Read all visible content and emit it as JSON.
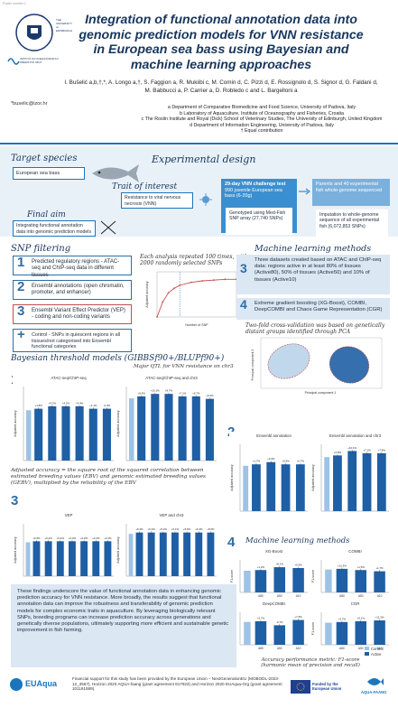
{
  "corner_text": "Poster number 1",
  "title": "Integration of functional annotation data into genomic prediction models for VNN resistance in European sea bass using Bayesian and machine learning approaches",
  "authors": "I. Bušelić a,b,†,*, A. Longo a,†, S. Faggion a, R. Mukiibi c, M. Comin d, C. Pizzi d, E. Rossignolo d, S. Signor d, G. Faldani d, M. Babbucci a, P. Carrier a, D. Robledo c and L. Bargelloni a",
  "email": "*buselic@izor.hr",
  "affiliations": [
    "a Department of Comparative Biomedicine and Food Science, University of Padova, Italy",
    "b Laboratory of Aquaculture, Institute of Oceanography and Fisheries, Croatia",
    "c The Roslin Institute and Royal (Dick) School of Veterinary Studies, The University of Edinburgh, United Kingdom",
    "d Department of Information Engineering, University of Padova, Italy",
    "† Equal contribution"
  ],
  "logos": {
    "university": "THE UNIVERSITY of EDINBURGH",
    "institute": "INSTITUT ZA OCEANOGRAFIJU I RIBARSTVO SPLIT",
    "euaqua": "EUAqua",
    "eu": "Funded by the European Union",
    "aquafaang": "AQUA-FAANG"
  },
  "target_species": {
    "title": "Target species",
    "label": "European sea bass"
  },
  "trait": {
    "title": "Trait of interest",
    "label": "Resistance to viral nervous necrosis (VNN)"
  },
  "final_aim": {
    "title": "Final aim",
    "label": "Integrating functional annotation data into genomic prediction models"
  },
  "experimental_design": {
    "title": "Experimental design",
    "challenge": "29-day VNN challenge test",
    "challenge_detail": "990 juvenile European sea bass (6-20g)",
    "genotyped": "Genotyped using Med-Fish SNP array (27,740 SNPs)",
    "parents": "Parents and 40 experimental fish whole-genome sequenced",
    "imputation": "Imputation to whole-genome sequence of all experimental fish (6,072,853 SNPs)"
  },
  "snp_filtering": {
    "title": "SNP filtering",
    "items": [
      {
        "num": "1",
        "text": "Predicted regulatory regions - ATAC-seq and ChIP-seq data in different tissues"
      },
      {
        "num": "2",
        "text": "Ensembl annotations (open chromatin, promoter, and enhancer)"
      },
      {
        "num": "3",
        "text": "Ensembl Variant Effect Predictor (VEP) - coding and non-coding variants"
      },
      {
        "num": "+",
        "text": "Control - SNPs in quiescent regions in all tissues/not categorised into Ensembl functional categories"
      }
    ],
    "repeat_note": "Each analysis repeated 100 times, with 2000 randomly selected SNPs"
  },
  "ml_methods": {
    "title": "Machine learning methods",
    "item3": "Three datasets created based on ATAC and ChIP-seq data: regions active in at least 80% of tissues (Active80), 50% of tissues (Active50) and 10% of tissues (Active10)",
    "item4": "Extreme gradient boosting (XG-Boost), COMBI, DeepCOMBI and Chaos Game Representation (CGR)",
    "cv_note": "Two-fold cross-validation was based on genetically distant groups identified through PCA",
    "pca_xlabel": "Principal component 1",
    "pca_ylabel": "Principal component 2"
  },
  "bayesian": {
    "title": "Bayesian threshold models (GIBBSf90+/BLUPf90+)",
    "qtl_note": "Major QTL for VNN resistance on chr3",
    "adjusted_note": "Adjusted accuracy = the square root of the squared correlation between estimated breeding values (EBV) and genomic estimated breeding values (GEBV), multiplied by the reliability of the EBV"
  },
  "ml_results_title": "Machine learning methods",
  "accuracy_note": "Accuracy performance metric: F1-score (harmonic mean of precision and recall)",
  "legend": {
    "control": "Control",
    "active": "Active"
  },
  "conclusion": "These findings underscore the value of functional annotation data in enhancing genomic prediction accuracy for VNN resistance. More broadly, the results suggest that functional annotation data can improve the robustness and transferability of genomic prediction models for complex economic traits in aquaculture. By leveraging biologically relevant SNPs, breeding programs can increase prediction accuracy across generations and genetically diverse populations, ultimately supporting more efficient and sustainable genetic improvement in fish farming.",
  "footer": "Financial support for this study has been provided by the European Union – NextGenerationEU (MOBODL-2023-12_3567), Horizon 2020 AQUA-faang (grant agreement 817923) and Horizon 2020 EUAqua-Org (grant agreement 101161589).",
  "chart_data": [
    {
      "type": "line",
      "title": "",
      "xlabel": "Number of SNP",
      "ylabel": "Adjusted accuracy",
      "x": [
        0,
        500,
        1000,
        1500,
        2000,
        3000,
        4000,
        5000,
        6000,
        7000
      ],
      "values": [
        0.0,
        0.1,
        0.16,
        0.19,
        0.21,
        0.23,
        0.24,
        0.245,
        0.25,
        0.25
      ],
      "ylim": [
        0,
        0.3
      ]
    },
    {
      "type": "bar",
      "title": "ATAC-seq/ChIP-seq",
      "ylabel": "Adjusted accuracy",
      "values": [
        0.21,
        0.22,
        0.22,
        0.22,
        0.21,
        0.21
      ],
      "labels": [
        "+1.8%",
        "+4.2%",
        "+4.2%",
        "+3.4%",
        "+1.1%",
        "-0.4%"
      ],
      "ylim": [
        0,
        0.3
      ]
    },
    {
      "type": "bar",
      "title": "ATAC-seq/ChIP-seq and chr3",
      "ylabel": "Adjusted accuracy",
      "values": [
        0.26,
        0.27,
        0.27,
        0.26,
        0.26,
        0.25
      ],
      "labels": [
        "+9.3%",
        "+10.1%",
        "+9.7%",
        "+7.1%",
        "+6.7%",
        "+5.2%"
      ],
      "ylim": [
        0,
        0.3
      ]
    },
    {
      "type": "bar",
      "title": "Ensembl annotation",
      "ylabel": "Adjusted accuracy",
      "values": [
        0.21,
        0.22,
        0.21,
        0.21
      ],
      "labels": [
        "+1.7%",
        "+3.0%",
        "+0.5%",
        "+0.7%"
      ],
      "ylim": [
        0,
        0.3
      ]
    },
    {
      "type": "bar",
      "title": "Ensembl annotation and chr3",
      "ylabel": "Adjusted accuracy",
      "values": [
        0.25,
        0.27,
        0.26,
        0.26
      ],
      "labels": [
        "+5.8%",
        "+10.1%",
        "+7.1%",
        "+7.8%"
      ],
      "ylim": [
        0,
        0.3
      ]
    },
    {
      "type": "bar",
      "title": "VEP",
      "ylabel": "Adjusted accuracy",
      "values": [
        0.2,
        0.2,
        0.2,
        0.2,
        0.2,
        0.2,
        0.2
      ],
      "labels": [
        "+0.3%",
        "+0.4%",
        "+0.4%",
        "+0.3%",
        "+0.2%",
        "+0.2%",
        "+0.1%"
      ],
      "ylim": [
        0,
        0.3
      ]
    },
    {
      "type": "bar",
      "title": "VEP and chr3",
      "ylabel": "Adjusted accuracy",
      "values": [
        0.25,
        0.25,
        0.25,
        0.25,
        0.25,
        0.25,
        0.25
      ],
      "labels": [
        "+5.4%",
        "+5.2%",
        "+5.2%",
        "+5.1%",
        "+5.6%",
        "+5.3%",
        "+5.0%"
      ],
      "ylim": [
        0,
        0.3
      ]
    },
    {
      "type": "bar",
      "title": "XG-Boost",
      "ylabel": "F1-score",
      "categories": [
        "A80",
        "A50",
        "A10"
      ],
      "values": [
        0.55,
        0.62,
        0.6
      ],
      "labels": [
        "+1.2%",
        "+8.1%",
        "+5.3%"
      ],
      "ylim": [
        0,
        0.8
      ]
    },
    {
      "type": "bar",
      "title": "COMBI",
      "ylabel": "F1-score",
      "categories": [
        "A80",
        "A50",
        "A10"
      ],
      "values": [
        0.58,
        0.55,
        0.52
      ],
      "labels": [
        "+12.3%",
        "+1.5%",
        "+1.7%"
      ],
      "ylim": [
        0,
        0.8
      ]
    },
    {
      "type": "bar",
      "title": "DeepCOMBI",
      "ylabel": "F1-score",
      "categories": [
        "A80",
        "A50",
        "A10"
      ],
      "values": [
        0.58,
        0.48,
        0.61
      ],
      "labels": [
        "+5.7%",
        "-0.7%",
        "+7.3%"
      ],
      "ylim": [
        0,
        0.8
      ]
    },
    {
      "type": "bar",
      "title": "CGR",
      "ylabel": "F1-score",
      "categories": [
        "A80",
        "A50",
        "A10"
      ],
      "values": [
        0.56,
        0.58,
        0.6
      ],
      "labels": [
        "+3.7%",
        "+9.1%",
        "+11.3%"
      ],
      "ylim": [
        0,
        0.8
      ]
    }
  ]
}
